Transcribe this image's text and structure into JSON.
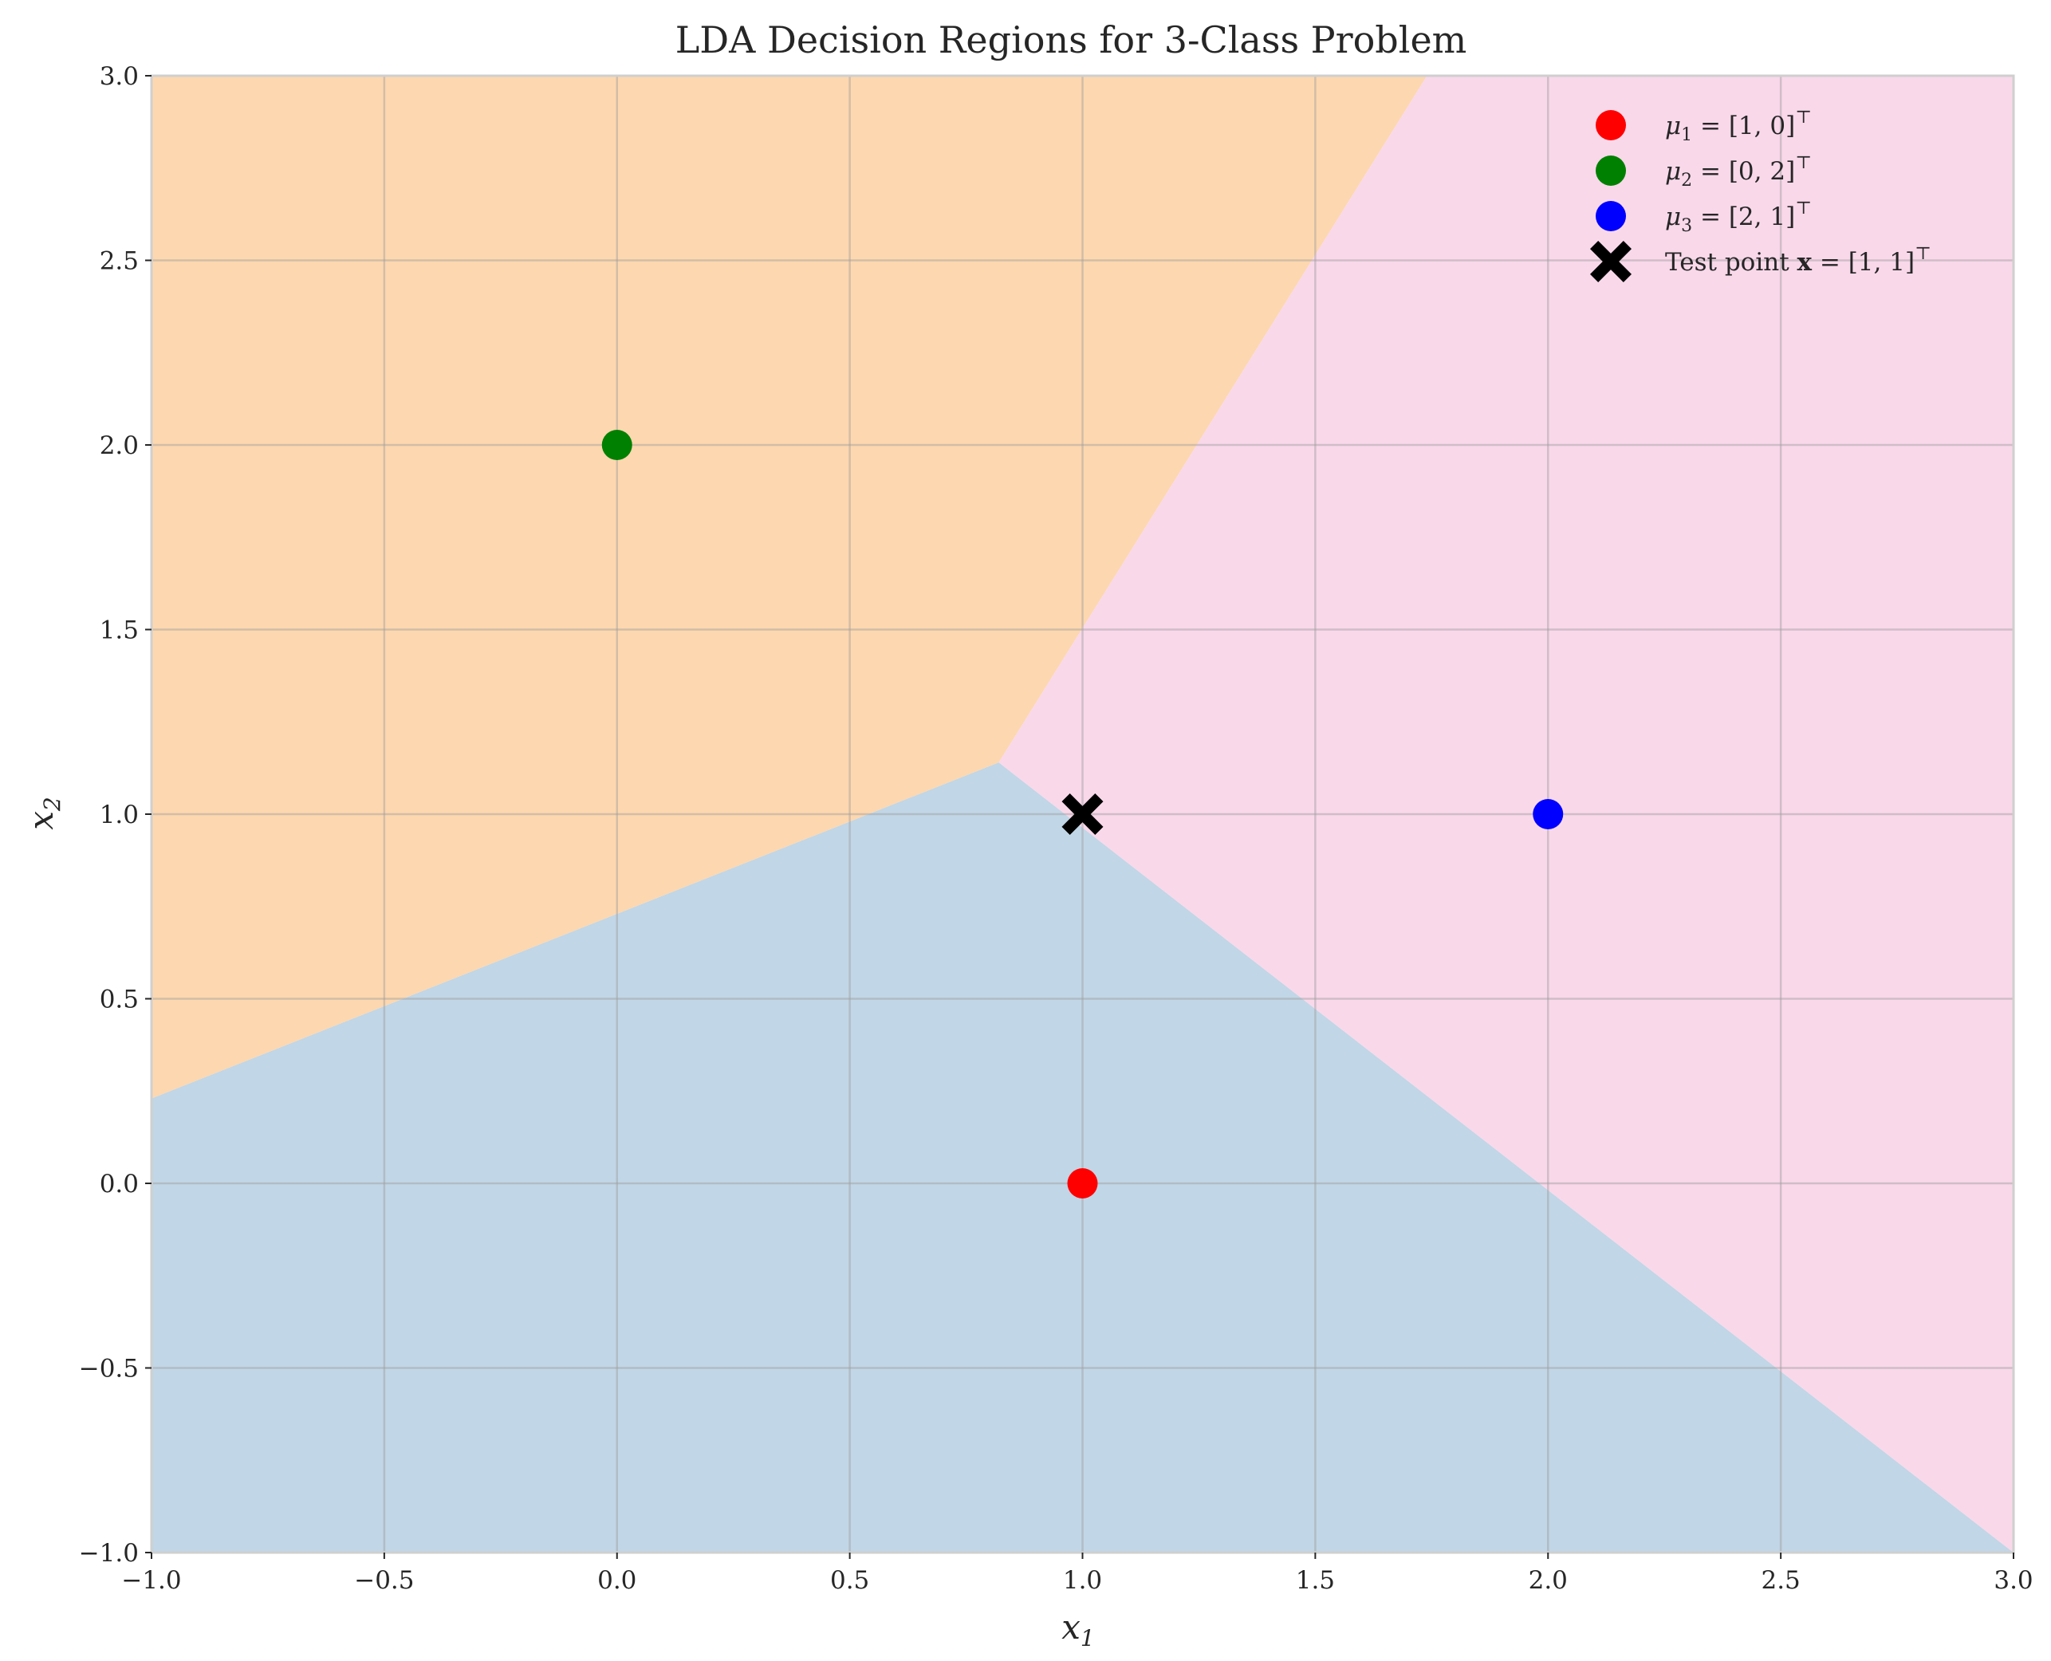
{
  "chart_data": {
    "type": "scatter",
    "title": "LDA Decision Regions for 3-Class Problem",
    "xlabel": {
      "main": "x",
      "sub": "1"
    },
    "ylabel": {
      "main": "x",
      "sub": "2"
    },
    "xlim": [
      -1.0,
      3.0
    ],
    "ylim": [
      -1.0,
      3.0
    ],
    "x_ticks": [
      -1.0,
      -0.5,
      0.0,
      0.5,
      1.0,
      1.5,
      2.0,
      2.5,
      3.0
    ],
    "y_ticks": [
      -1.0,
      -0.5,
      0.0,
      0.5,
      1.0,
      1.5,
      2.0,
      2.5,
      3.0
    ],
    "x_tick_labels": [
      "−1.0",
      "−0.5",
      "0.0",
      "0.5",
      "1.0",
      "1.5",
      "2.0",
      "2.5",
      "3.0"
    ],
    "y_tick_labels": [
      "−1.0",
      "−0.5",
      "0.0",
      "0.5",
      "1.0",
      "1.5",
      "2.0",
      "2.5",
      "3.0"
    ],
    "grid": true,
    "legend_position": "top-right",
    "regions": [
      {
        "class": 1,
        "color": "#c1d6e6",
        "polygon": [
          [
            -1.0,
            -1.0
          ],
          [
            3.0,
            -1.0
          ],
          [
            0.82,
            1.14
          ],
          [
            -1.0,
            0.23
          ]
        ]
      },
      {
        "class": 2,
        "color": "#fdd7af",
        "polygon": [
          [
            -1.0,
            0.23
          ],
          [
            0.82,
            1.14
          ],
          [
            0.82,
            1.14
          ],
          [
            1.74,
            3.0
          ],
          [
            -1.0,
            3.0
          ]
        ]
      },
      {
        "class": 3,
        "color": "#f9d8ea",
        "polygon": [
          [
            0.82,
            1.14
          ],
          [
            3.0,
            -1.0
          ],
          [
            3.0,
            3.0
          ],
          [
            1.74,
            3.0
          ]
        ]
      }
    ],
    "series": [
      {
        "label": [
          "μ",
          "1",
          " = [1, 0]",
          "⊤"
        ],
        "marker": "circle",
        "color": "#ff0000",
        "points": [
          [
            1.0,
            0.0
          ]
        ]
      },
      {
        "label": [
          "μ",
          "2",
          " = [0, 2]",
          "⊤"
        ],
        "marker": "circle",
        "color": "#008000",
        "points": [
          [
            0.0,
            2.0
          ]
        ]
      },
      {
        "label": [
          "μ",
          "3",
          " = [2, 1]",
          "⊤"
        ],
        "marker": "circle",
        "color": "#0000ff",
        "points": [
          [
            2.0,
            1.0
          ]
        ]
      },
      {
        "label": [
          "Test point ",
          "x",
          " = [1, 1]",
          "⊤"
        ],
        "marker": "x",
        "color": "#000000",
        "points": [
          [
            1.0,
            1.0
          ]
        ]
      }
    ]
  }
}
